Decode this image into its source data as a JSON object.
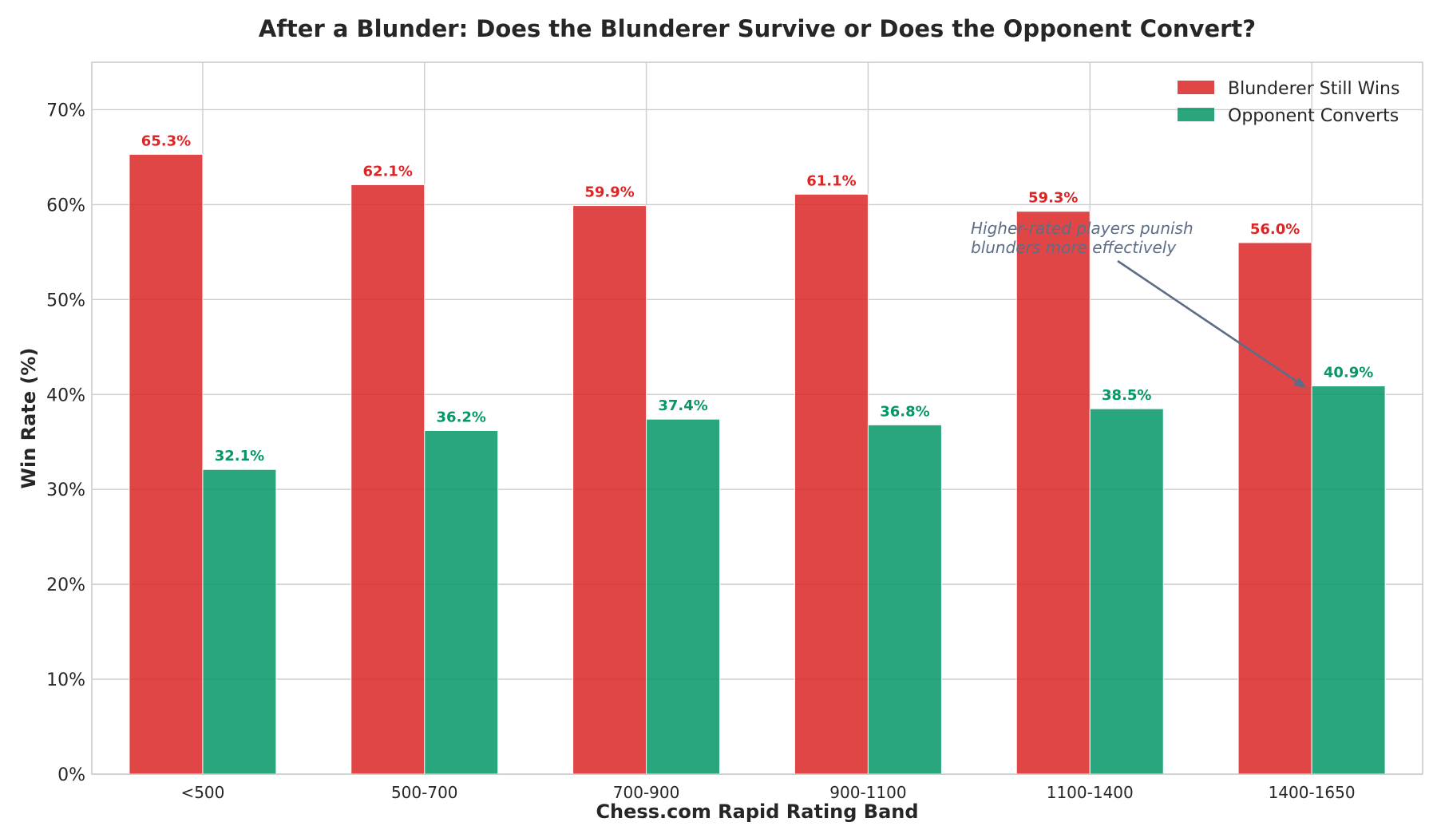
{
  "chart_data": {
    "type": "bar",
    "title": "After a Blunder: Does the Blunderer Survive or Does the Opponent Convert?",
    "xlabel": "Chess.com Rapid Rating Band",
    "ylabel": "Win Rate (%)",
    "ylim": [
      0,
      75
    ],
    "yticks": [
      0,
      10,
      20,
      30,
      40,
      50,
      60,
      70
    ],
    "ytick_labels": [
      "0%",
      "10%",
      "20%",
      "30%",
      "40%",
      "50%",
      "60%",
      "70%"
    ],
    "categories": [
      "<500",
      "500-700",
      "700-900",
      "900-1100",
      "1100-1400",
      "1400-1650"
    ],
    "series": [
      {
        "name": "Blunderer Still Wins",
        "color": "#dc2626",
        "label_color": "#dc2626",
        "values": [
          65.3,
          62.1,
          59.9,
          61.1,
          59.3,
          56.0
        ],
        "labels": [
          "65.3%",
          "62.1%",
          "59.9%",
          "61.1%",
          "59.3%",
          "56.0%"
        ]
      },
      {
        "name": "Opponent Converts",
        "color": "#059669",
        "label_color": "#059669",
        "values": [
          32.1,
          36.2,
          37.4,
          36.8,
          38.5,
          40.9
        ],
        "labels": [
          "32.1%",
          "36.2%",
          "37.4%",
          "36.8%",
          "38.5%",
          "40.9%"
        ]
      }
    ],
    "grid": true,
    "legend_position": "top-right",
    "annotation": {
      "lines": [
        "Higher-rated players punish",
        "blunders more effectively"
      ],
      "color": "#5d6d85",
      "points_to": {
        "category": "1400-1650",
        "value": 40.9
      }
    }
  }
}
